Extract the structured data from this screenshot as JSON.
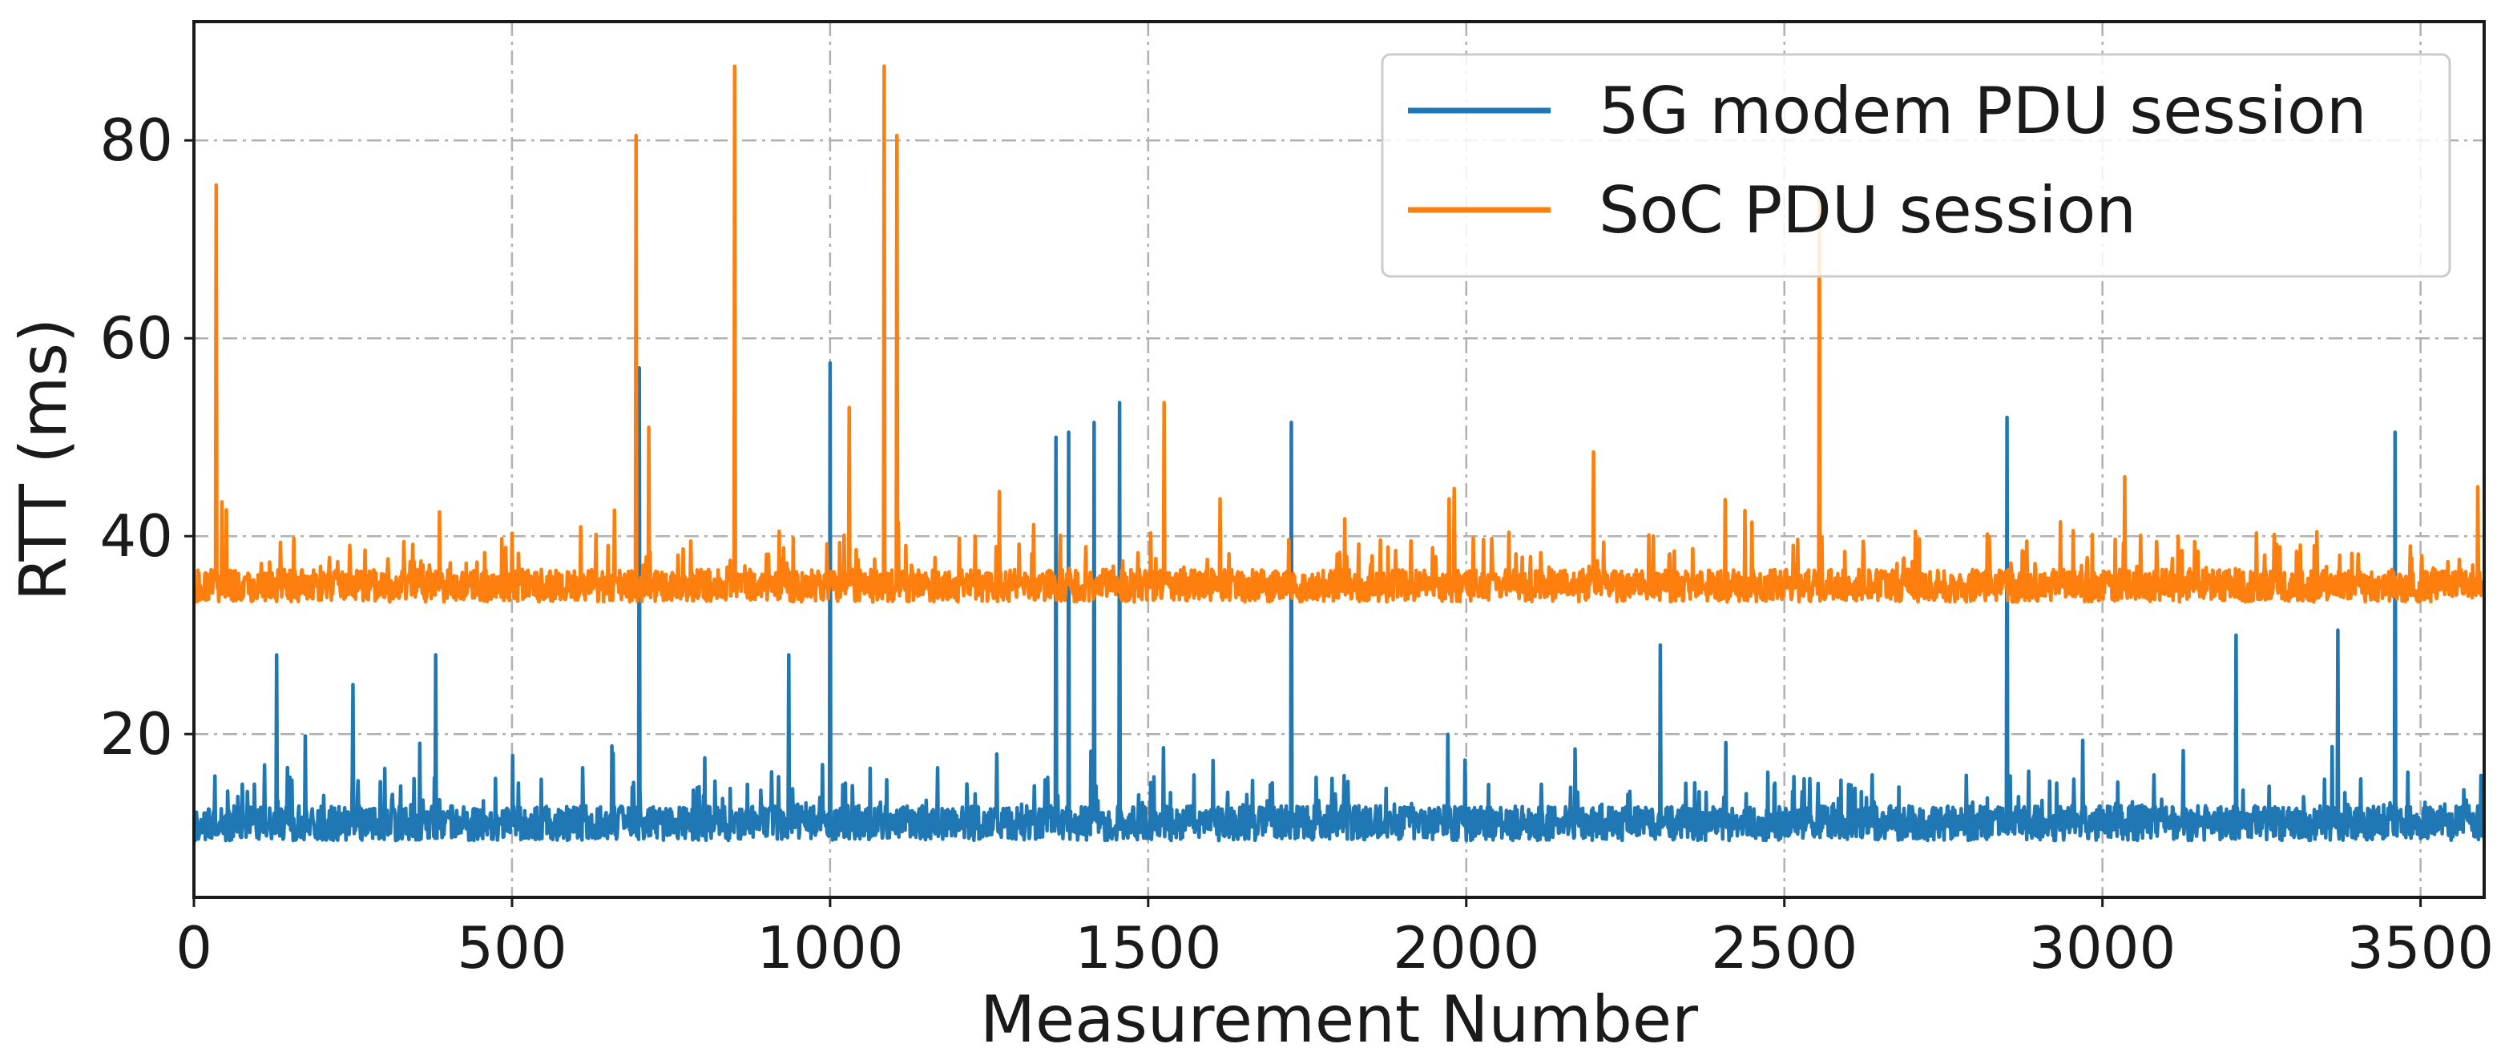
{
  "chart_data": {
    "type": "line",
    "title": "",
    "xlabel": "Measurement Number",
    "ylabel": "RTT (ms)",
    "xlim": [
      0,
      3600
    ],
    "ylim": [
      3.5,
      92
    ],
    "xticks": [
      0,
      500,
      1000,
      1500,
      2000,
      2500,
      3000,
      3500
    ],
    "yticks": [
      20,
      40,
      60,
      80
    ],
    "grid": true,
    "legend_position": "top-right",
    "n_points": 3600,
    "series": [
      {
        "name": "5G modem PDU session",
        "color": "#1f77b4",
        "baseline_ms": 11,
        "typical_range_ms": [
          7.5,
          20
        ],
        "spikes": [
          {
            "x": 130,
            "y": 28
          },
          {
            "x": 250,
            "y": 25
          },
          {
            "x": 380,
            "y": 28
          },
          {
            "x": 700,
            "y": 57
          },
          {
            "x": 935,
            "y": 28
          },
          {
            "x": 1000,
            "y": 57.5
          },
          {
            "x": 1355,
            "y": 50
          },
          {
            "x": 1375,
            "y": 50.5
          },
          {
            "x": 1415,
            "y": 51.5
          },
          {
            "x": 1455,
            "y": 53.5
          },
          {
            "x": 1725,
            "y": 51.5
          },
          {
            "x": 2850,
            "y": 52
          },
          {
            "x": 3460,
            "y": 50.5
          },
          {
            "x": 3370,
            "y": 30.5
          },
          {
            "x": 3210,
            "y": 30
          },
          {
            "x": 2305,
            "y": 29
          }
        ]
      },
      {
        "name": "SoC PDU session",
        "color": "#ff7f0e",
        "baseline_ms": 35,
        "typical_range_ms": [
          32,
          45
        ],
        "spikes": [
          {
            "x": 35,
            "y": 75.5
          },
          {
            "x": 695,
            "y": 80.5
          },
          {
            "x": 715,
            "y": 51
          },
          {
            "x": 850,
            "y": 87.5
          },
          {
            "x": 1030,
            "y": 53
          },
          {
            "x": 1085,
            "y": 87.5
          },
          {
            "x": 1105,
            "y": 80.5
          },
          {
            "x": 1525,
            "y": 53.5
          },
          {
            "x": 2555,
            "y": 74.5
          },
          {
            "x": 2200,
            "y": 48.5
          },
          {
            "x": 3035,
            "y": 46
          },
          {
            "x": 3590,
            "y": 45
          }
        ]
      }
    ]
  }
}
